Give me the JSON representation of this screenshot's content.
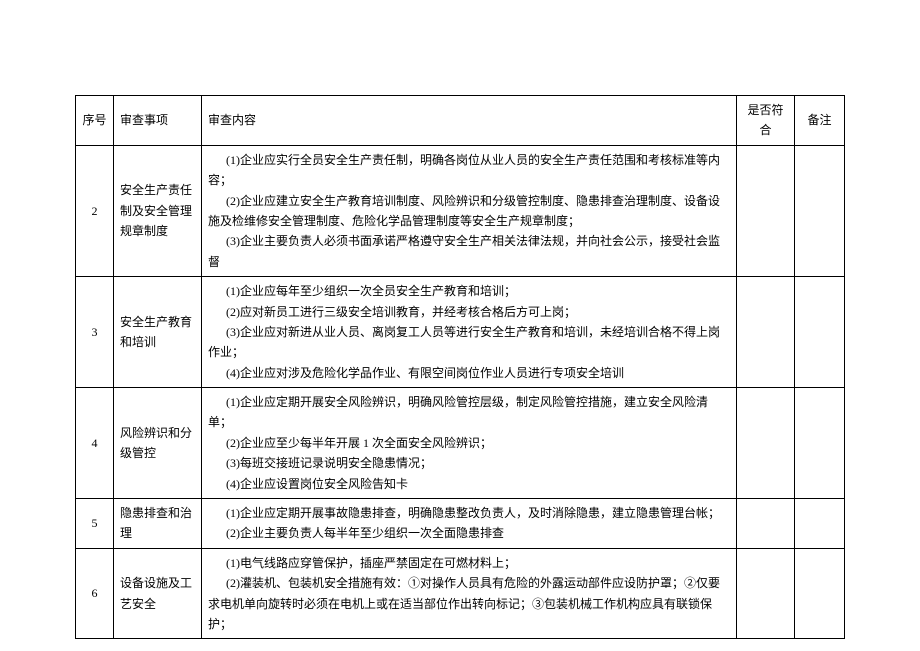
{
  "table": {
    "headers": {
      "seq": "序号",
      "item": "审查事项",
      "content": "审查内容",
      "compliant": "是否符合",
      "remark": "备注"
    },
    "rows": [
      {
        "seq": "2",
        "item": "安全生产责任制及安全管理规章制度",
        "content": {
          "p1": "(1)企业应实行全员安全生产责任制，明确各岗位从业人员的安全生产责任范围和考核标准等内容；",
          "p2": "(2)企业应建立安全生产教育培训制度、风险辨识和分级管控制度、隐患排查治理制度、设备设施及检维修安全管理制度、危险化学品管理制度等安全生产规章制度；",
          "p3": "(3)企业主要负责人必须书面承诺严格遵守安全生产相关法律法规，并向社会公示，接受社会监督"
        },
        "compliant": "",
        "remark": ""
      },
      {
        "seq": "3",
        "item": "安全生产教育和培训",
        "content": {
          "p1": "(1)企业应每年至少组织一次全员安全生产教育和培训；",
          "p2": "(2)应对新员工进行三级安全培训教育，并经考核合格后方可上岗；",
          "p3": "(3)企业应对新进从业人员、离岗复工人员等进行安全生产教育和培训，未经培训合格不得上岗作业；",
          "p4": "(4)企业应对涉及危险化学品作业、有限空间岗位作业人员进行专项安全培训"
        },
        "compliant": "",
        "remark": ""
      },
      {
        "seq": "4",
        "item": "风险辨识和分级管控",
        "content": {
          "p1": "(1)企业应定期开展安全风险辨识，明确风险管控层级，制定风险管控措施，建立安全风险清单；",
          "p2": "(2)企业应至少每半年开展 1 次全面安全风险辨识；",
          "p3": "(3)每班交接班记录说明安全隐患情况；",
          "p4": "(4)企业应设置岗位安全风险告知卡"
        },
        "compliant": "",
        "remark": ""
      },
      {
        "seq": "5",
        "item": "隐患排查和治理",
        "content": {
          "p1": "(1)企业应定期开展事故隐患排查，明确隐患整改负责人，及时消除隐患，建立隐患管理台帐；",
          "p2": "(2)企业主要负责人每半年至少组织一次全面隐患排查"
        },
        "compliant": "",
        "remark": ""
      },
      {
        "seq": "6",
        "item": "设备设施及工艺安全",
        "content": {
          "p1": "(1)电气线路应穿管保护，插座严禁固定在可燃材料上；",
          "p2": "(2)灌装机、包装机安全措施有效：①对操作人员具有危险的外露运动部件应设防护罩；②仅要求电机单向旋转时必须在电机上或在适当部位作出转向标记；③包装机械工作机构应具有联锁保护；"
        },
        "compliant": "",
        "remark": ""
      }
    ]
  }
}
